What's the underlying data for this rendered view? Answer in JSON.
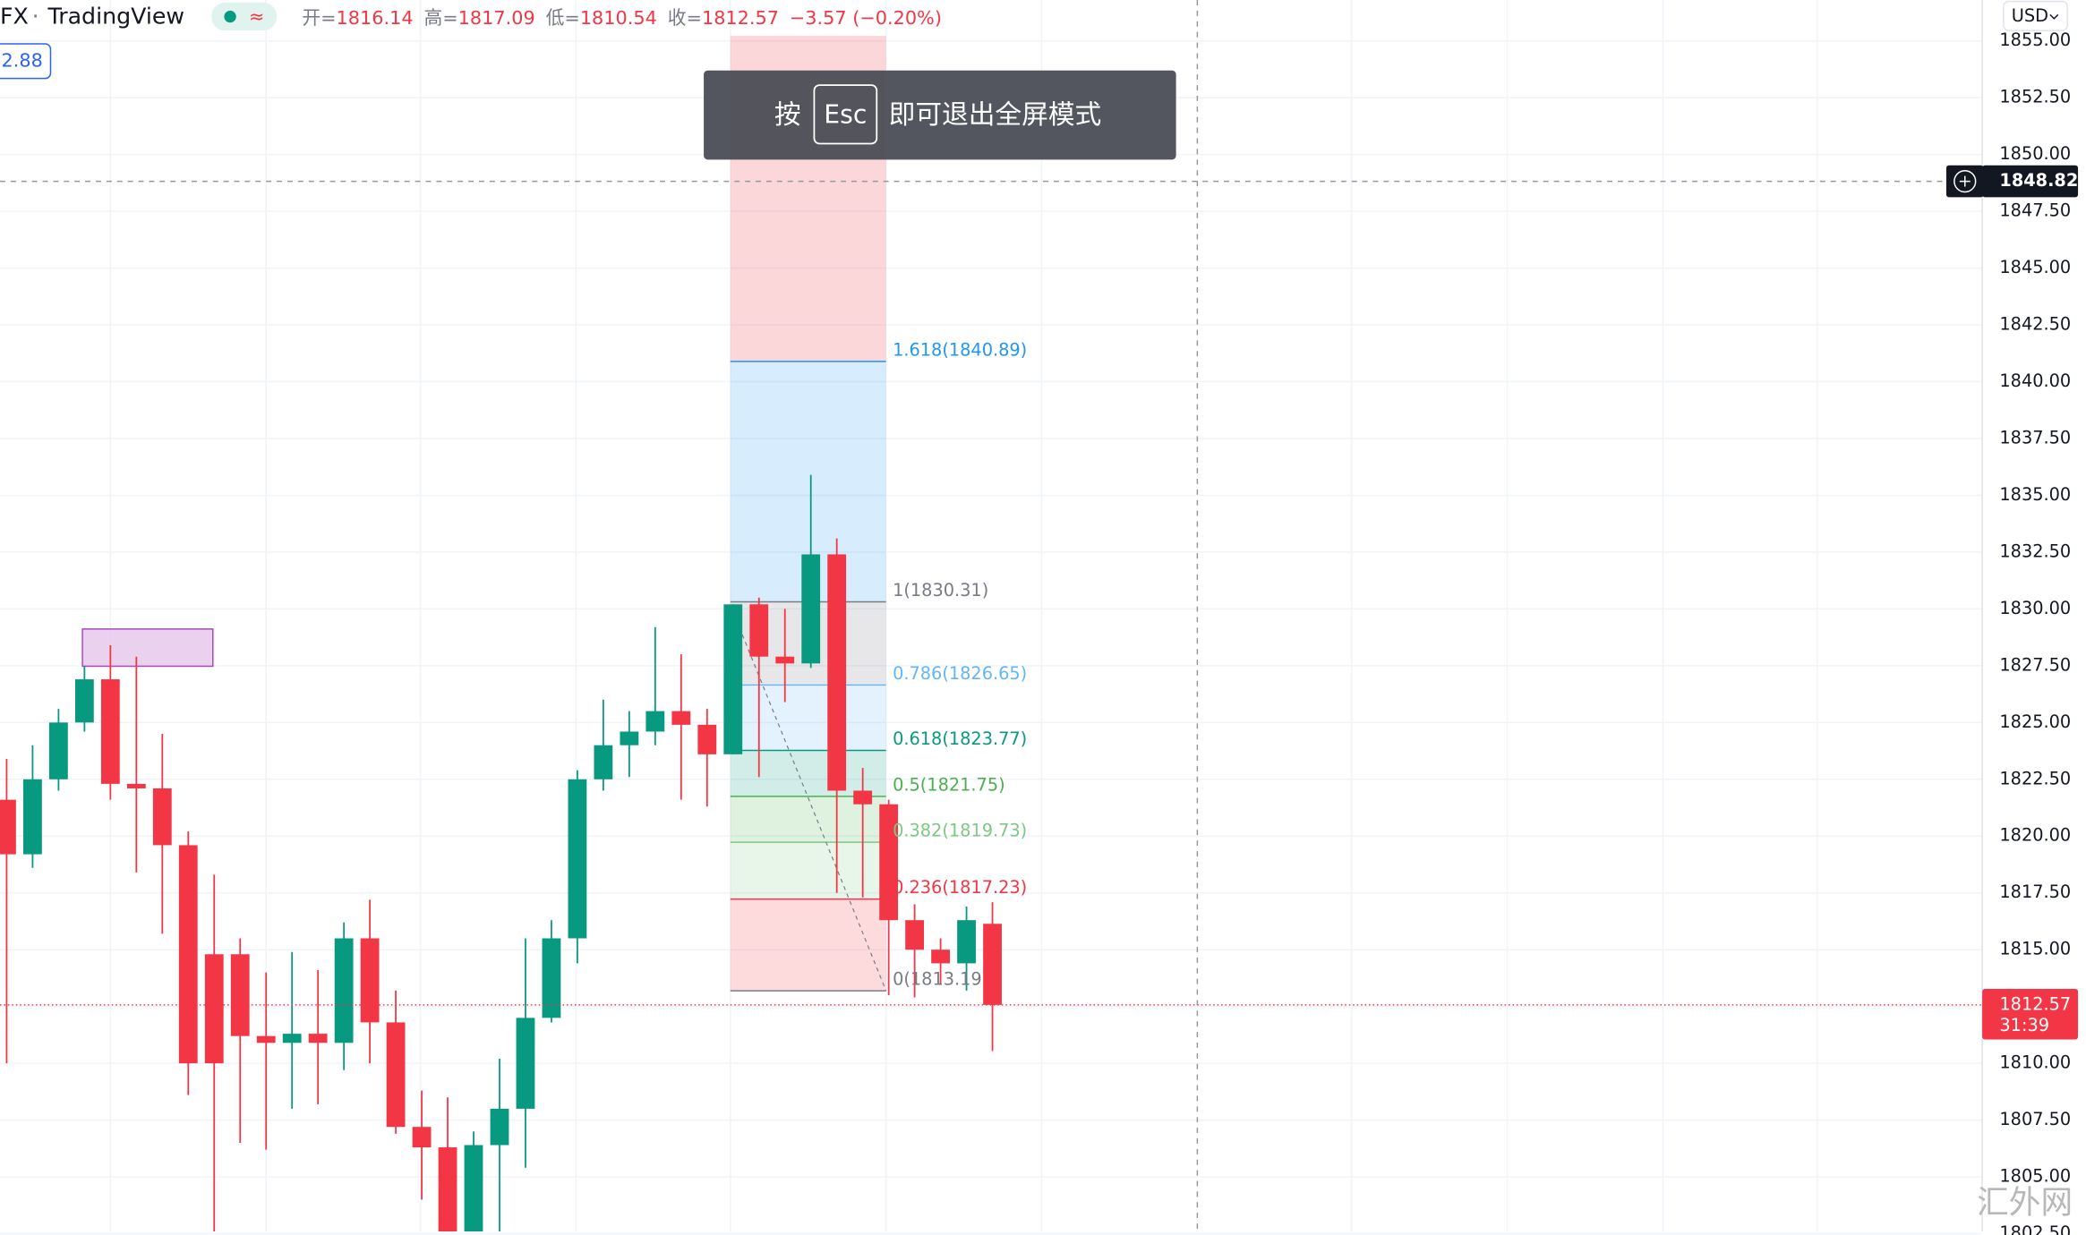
{
  "header": {
    "symbol": "FX",
    "source": "TradingView",
    "approx": "≈",
    "open_label": "开=",
    "high_label": "高=",
    "low_label": "低=",
    "close_label": "收=",
    "change": "−3.57 (−0.20%)",
    "indicator_value": "2.88",
    "currency": "USD"
  },
  "toast": {
    "prefix": "按",
    "key": "Esc",
    "suffix": "即可退出全屏模式"
  },
  "watermark": "汇外网",
  "chart_data": {
    "type": "candlestick",
    "categories": [
      null,
      null,
      null,
      null,
      null,
      null,
      null,
      null,
      null,
      null,
      null,
      null,
      null,
      null,
      null,
      null,
      null,
      null,
      null,
      null,
      null,
      null,
      null,
      null,
      null,
      null,
      null,
      null,
      null,
      null,
      null,
      null,
      null,
      null,
      null,
      null,
      null,
      null,
      null
    ],
    "open": [
      1821.6,
      1819.2,
      1822.5,
      1825.0,
      1826.9,
      1822.3,
      1822.1,
      1819.6,
      1814.8,
      1814.8,
      1811.2,
      1810.9,
      1811.3,
      1810.9,
      1815.5,
      1811.8,
      1807.2,
      1806.3,
      1802.5,
      1806.4,
      1808.0,
      1812.0,
      1815.5,
      1822.5,
      1824.0,
      1824.6,
      1825.5,
      1824.9,
      1823.6,
      1830.2,
      1827.9,
      1827.6,
      1832.4,
      1822.0,
      1821.4,
      1816.3,
      1815.0,
      1814.4,
      1816.14
    ],
    "high": [
      1823.4,
      1824.0,
      1825.6,
      1827.5,
      1828.4,
      1827.9,
      1824.5,
      1820.2,
      1818.3,
      1815.5,
      1814.0,
      1814.9,
      1814.1,
      1816.2,
      1817.2,
      1813.2,
      1808.8,
      1808.5,
      1807.0,
      1810.2,
      1815.5,
      1816.3,
      1822.9,
      1826.0,
      1825.5,
      1829.2,
      1828.0,
      1825.6,
      1830.2,
      1830.5,
      1830.0,
      1835.9,
      1833.1,
      1823.0,
      1821.6,
      1817.0,
      1815.5,
      1816.9,
      1817.09
    ],
    "low": [
      1810.0,
      1818.6,
      1822.0,
      1824.6,
      1821.6,
      1818.4,
      1815.7,
      1808.6,
      1802.6,
      1806.5,
      1806.2,
      1808.0,
      1808.2,
      1809.7,
      1810.0,
      1806.9,
      1804.0,
      1802.5,
      1802.5,
      1802.5,
      1805.4,
      1811.8,
      1814.4,
      1822.0,
      1822.6,
      1824.0,
      1821.6,
      1821.3,
      1823.6,
      1822.6,
      1825.9,
      1827.4,
      1817.5,
      1817.3,
      1813.0,
      1812.9,
      1813.5,
      1813.2,
      1810.54
    ],
    "close": [
      1819.2,
      1822.5,
      1825.0,
      1826.9,
      1822.3,
      1822.1,
      1819.6,
      1810.0,
      1810.0,
      1811.2,
      1810.9,
      1811.3,
      1810.9,
      1815.5,
      1811.8,
      1807.2,
      1806.3,
      1802.5,
      1806.4,
      1808.0,
      1812.0,
      1815.5,
      1822.5,
      1824.0,
      1824.6,
      1825.5,
      1824.9,
      1823.6,
      1830.2,
      1827.9,
      1827.6,
      1832.4,
      1822.0,
      1821.4,
      1816.3,
      1815.0,
      1814.4,
      1816.3,
      1812.57
    ],
    "up_color": "#089981",
    "down_color": "#f23645",
    "ylim": [
      1802.6,
      1856.8
    ],
    "yticks": [
      {
        "value": 1855,
        "label": "1855.00"
      },
      {
        "value": 1852.5,
        "label": "1852.50"
      },
      {
        "value": 1850,
        "label": "1850.00"
      },
      {
        "value": 1847.5,
        "label": "1847.50"
      },
      {
        "value": 1845,
        "label": "1845.00"
      },
      {
        "value": 1842.5,
        "label": "1842.50"
      },
      {
        "value": 1840,
        "label": "1840.00"
      },
      {
        "value": 1837.5,
        "label": "1837.50"
      },
      {
        "value": 1835,
        "label": "1835.00"
      },
      {
        "value": 1832.5,
        "label": "1832.50"
      },
      {
        "value": 1830,
        "label": "1830.00"
      },
      {
        "value": 1827.5,
        "label": "1827.50"
      },
      {
        "value": 1825,
        "label": "1825.00"
      },
      {
        "value": 1822.5,
        "label": "1822.50"
      },
      {
        "value": 1820,
        "label": "1820.00"
      },
      {
        "value": 1817.5,
        "label": "1817.50"
      },
      {
        "value": 1815,
        "label": "1815.00"
      },
      {
        "value": 1812.5,
        "label": "1812.50"
      },
      {
        "value": 1810,
        "label": "1810.00"
      },
      {
        "value": 1807.5,
        "label": "1807.50"
      },
      {
        "value": 1805,
        "label": "1805.00"
      },
      {
        "value": 1802.5,
        "label": "1802.50"
      }
    ],
    "grid": true,
    "fib": {
      "top_zone_color": "#f23645",
      "levels": [
        {
          "label": "1.618(1840.89)",
          "value": 1840.89,
          "color": "#2196f3"
        },
        {
          "label": "1(1830.31)",
          "value": 1830.31,
          "color": "#787b86"
        },
        {
          "label": "0.786(1826.65)",
          "value": 1826.65,
          "color": "#64b5f6"
        },
        {
          "label": "0.618(1823.77)",
          "value": 1823.77,
          "color": "#089981"
        },
        {
          "label": "0.5(1821.75)",
          "value": 1821.75,
          "color": "#4caf50"
        },
        {
          "label": "0.382(1819.73)",
          "value": 1819.73,
          "color": "#81c784"
        },
        {
          "label": "0.236(1817.23)",
          "value": 1817.23,
          "color": "#f23645"
        },
        {
          "label": "0(1813.19",
          "value": 1813.19,
          "color": "#787b86"
        }
      ]
    },
    "crosshair": {
      "price": 1848.82
    },
    "countdown": "31:39"
  }
}
